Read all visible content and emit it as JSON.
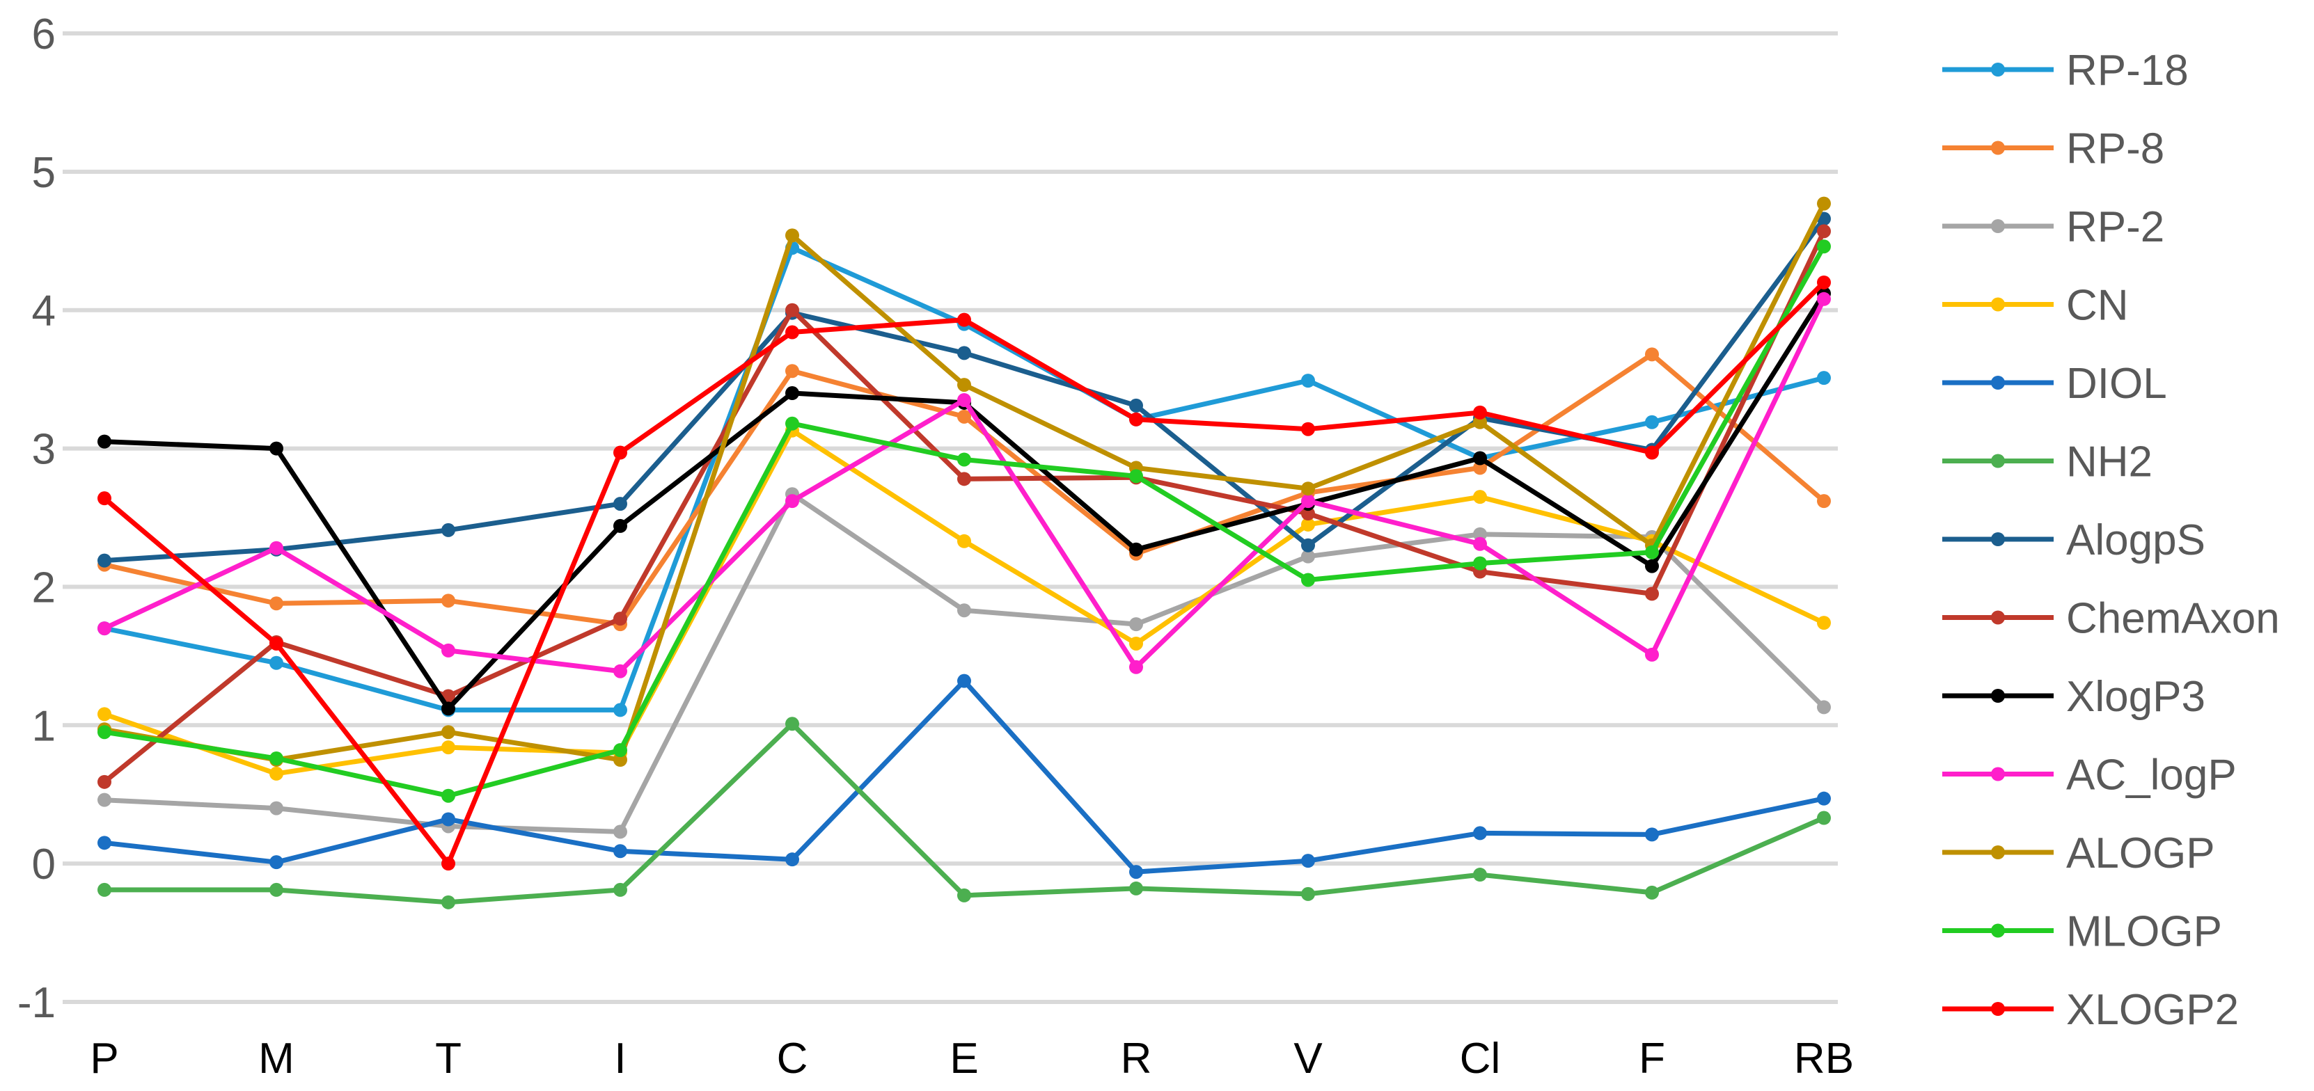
{
  "chart_data": {
    "type": "line",
    "title": "",
    "xlabel": "",
    "ylabel": "",
    "ylim": [
      -1,
      6
    ],
    "y_ticks": [
      "-1",
      "0",
      "1",
      "2",
      "3",
      "4",
      "5",
      "6"
    ],
    "categories": [
      "P",
      "M",
      "T",
      "I",
      "C",
      "E",
      "R",
      "V",
      "Cl",
      "F",
      "RB"
    ],
    "grid": true,
    "legend_position": "right",
    "series": [
      {
        "name": "RP-18",
        "color": "#1F9BD7",
        "values": [
          1.7,
          1.45,
          1.11,
          1.11,
          4.45,
          3.9,
          3.21,
          3.49,
          2.93,
          3.19,
          3.51
        ]
      },
      {
        "name": "RP-8",
        "color": "#F58232",
        "values": [
          2.16,
          1.88,
          1.9,
          1.73,
          3.56,
          3.23,
          2.24,
          2.68,
          2.86,
          3.68,
          2.62
        ]
      },
      {
        "name": "RP-2",
        "color": "#A5A5A5",
        "values": [
          0.46,
          0.4,
          0.27,
          0.23,
          2.67,
          1.83,
          1.73,
          2.22,
          2.38,
          2.36,
          1.13
        ]
      },
      {
        "name": "CN",
        "color": "#FFC000",
        "values": [
          1.08,
          0.65,
          0.84,
          0.8,
          3.13,
          2.33,
          1.59,
          2.45,
          2.65,
          2.33,
          1.74
        ]
      },
      {
        "name": "DIOL",
        "color": "#1A6FC4",
        "values": [
          0.15,
          0.01,
          0.32,
          0.09,
          0.03,
          1.32,
          -0.06,
          0.02,
          0.22,
          0.21,
          0.47
        ]
      },
      {
        "name": "NH2",
        "color": "#4CAF50",
        "values": [
          -0.19,
          -0.19,
          -0.28,
          -0.19,
          1.01,
          -0.23,
          -0.18,
          -0.22,
          -0.08,
          -0.21,
          0.33
        ]
      },
      {
        "name": "AlogpS",
        "color": "#1B5E8E",
        "values": [
          2.19,
          2.27,
          2.41,
          2.6,
          3.98,
          3.69,
          3.31,
          2.3,
          3.22,
          2.99,
          4.66
        ]
      },
      {
        "name": "ChemAxon",
        "color": "#C0392B",
        "values": [
          0.59,
          1.6,
          1.21,
          1.77,
          4.0,
          2.78,
          2.79,
          2.53,
          2.11,
          1.95,
          4.57
        ]
      },
      {
        "name": "XlogP3",
        "color": "#000000",
        "values": [
          3.05,
          3.0,
          1.12,
          2.44,
          3.4,
          3.33,
          2.27,
          2.6,
          2.93,
          2.15,
          4.12
        ]
      },
      {
        "name": "AC_logP",
        "color": "#FF1FCB",
        "values": [
          1.7,
          2.28,
          1.54,
          1.39,
          2.62,
          3.35,
          1.42,
          2.62,
          2.31,
          1.51,
          4.08
        ]
      },
      {
        "name": "ALOGP",
        "color": "#BF9000",
        "values": [
          0.97,
          0.75,
          0.95,
          0.75,
          4.54,
          3.46,
          2.86,
          2.71,
          3.19,
          2.3,
          4.77
        ]
      },
      {
        "name": "MLOGP",
        "color": "#22CC22",
        "values": [
          0.95,
          0.76,
          0.49,
          0.82,
          3.18,
          2.92,
          2.8,
          2.05,
          2.17,
          2.25,
          4.46
        ]
      },
      {
        "name": "XLOGP2",
        "color": "#FF0000",
        "values": [
          2.64,
          1.59,
          0.0,
          2.97,
          3.84,
          3.93,
          3.21,
          3.14,
          3.26,
          2.97,
          4.2
        ]
      }
    ]
  }
}
